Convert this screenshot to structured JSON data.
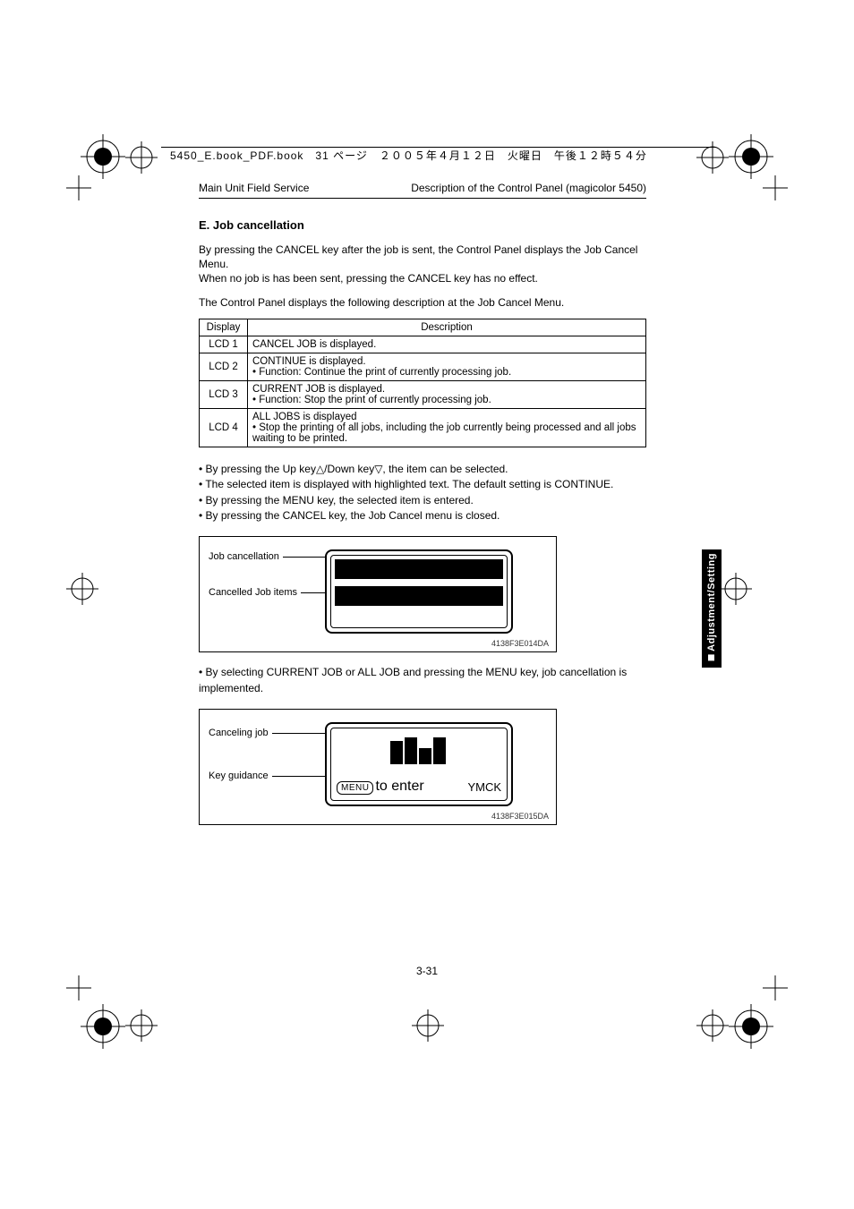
{
  "header": {
    "file_info": "5450_E.book_PDF.book　31 ページ　２００５年４月１２日　火曜日　午後１２時５４分"
  },
  "doc_header": {
    "left": "Main Unit Field Service",
    "right": "Description of the Control Panel (magicolor 5450)"
  },
  "section": {
    "heading": "E.   Job cancellation",
    "p1": "By pressing the CANCEL key after the job is sent, the Control Panel displays the Job Cancel Menu.",
    "p2": "When no job is has been sent, pressing the CANCEL key has no effect.",
    "p3": "The Control Panel displays the following description at the Job Cancel Menu."
  },
  "table": {
    "head": {
      "c1": "Display",
      "c2": "Description"
    },
    "rows": [
      {
        "c1": "LCD 1",
        "line1": "CANCEL JOB is displayed."
      },
      {
        "c1": "LCD 2",
        "line1": "CONTINUE is displayed.",
        "bullet": "Function: Continue the print of currently processing job."
      },
      {
        "c1": "LCD 3",
        "line1": "CURRENT JOB is displayed.",
        "bullet": "Function: Stop the print of currently processing job."
      },
      {
        "c1": "LCD 4",
        "line1": "ALL JOBS is displayed",
        "bullet": "Stop the printing of all jobs, including the job currently being processed and all jobs waiting to be printed."
      }
    ]
  },
  "bullets1": [
    "By pressing the Up key△/Down key▽, the item can be selected.",
    "The selected item is displayed with highlighted text. The default setting is CONTINUE.",
    "By pressing the MENU key, the selected item is entered.",
    "By pressing the CANCEL key, the Job Cancel menu is closed."
  ],
  "fig1": {
    "label1": "Job cancellation",
    "label2": "Cancelled Job items",
    "id": "4138F3E014DA"
  },
  "bullets2": [
    "By selecting CURRENT JOB or ALL JOB and pressing the MENU key, job cancellation is implemented."
  ],
  "fig2": {
    "label1": "Canceling job",
    "label2": "Key guidance",
    "menu_badge": "MENU",
    "enter_text": "to  enter",
    "ymck": "YMCK",
    "bars": [
      26,
      30,
      18,
      30
    ],
    "id": "4138F3E015DA"
  },
  "side_tab": "Adjustment/Setting",
  "page_number": "3-31",
  "colors": {
    "black": "#000000",
    "white": "#ffffff"
  }
}
